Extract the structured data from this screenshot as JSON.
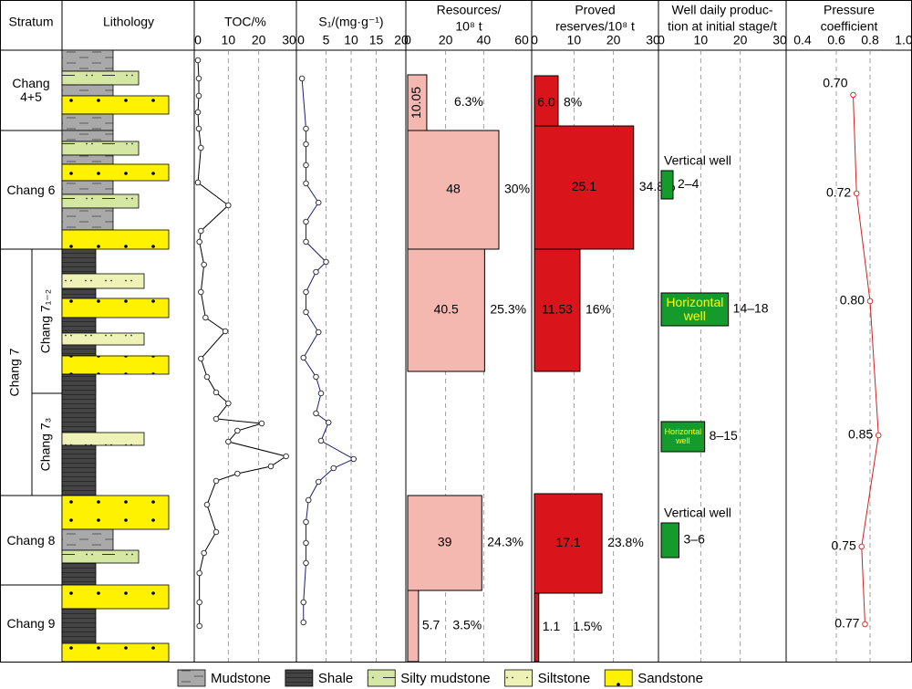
{
  "headers": {
    "stratum": "Stratum",
    "lithology": "Lithology"
  },
  "strata": [
    {
      "name": "Chang 4+5",
      "depth": [
        0,
        88
      ]
    },
    {
      "name": "Chang 6",
      "depth": [
        88,
        218
      ]
    },
    {
      "name": "Chang 7",
      "depth": [
        218,
        488
      ]
    },
    {
      "name": "Chang 8",
      "depth": [
        488,
        586
      ]
    },
    {
      "name": "Chang 9",
      "depth": [
        586,
        670
      ]
    }
  ],
  "substrata": [
    {
      "name": "Chang 7₁₋₂",
      "depth": [
        218,
        376
      ]
    },
    {
      "name": "Chang 7₃",
      "depth": [
        376,
        488
      ]
    }
  ],
  "lithology": [
    [
      0,
      0,
      23
    ],
    [
      2,
      23,
      38
    ],
    [
      0,
      38,
      50
    ],
    [
      4,
      50,
      70
    ],
    [
      0,
      70,
      88
    ],
    [
      0,
      88,
      100
    ],
    [
      2,
      100,
      115
    ],
    [
      0,
      115,
      125
    ],
    [
      4,
      125,
      143
    ],
    [
      0,
      143,
      158
    ],
    [
      2,
      158,
      173
    ],
    [
      0,
      173,
      197
    ],
    [
      4,
      197,
      218
    ],
    [
      1,
      218,
      245
    ],
    [
      3,
      245,
      261
    ],
    [
      1,
      261,
      272
    ],
    [
      4,
      272,
      293
    ],
    [
      1,
      293,
      310
    ],
    [
      3,
      310,
      323
    ],
    [
      1,
      323,
      335
    ],
    [
      4,
      335,
      355
    ],
    [
      1,
      355,
      419
    ],
    [
      3,
      419,
      433
    ],
    [
      1,
      433,
      488
    ],
    [
      4,
      488,
      525
    ],
    [
      0,
      525,
      548
    ],
    [
      2,
      548,
      562
    ],
    [
      1,
      562,
      586
    ],
    [
      4,
      586,
      612
    ],
    [
      1,
      612,
      650
    ],
    [
      4,
      650,
      670
    ]
  ],
  "legend": [
    "Mudstone",
    "Shale",
    "Silty mudstone",
    "Siltstone",
    "Sandstone"
  ],
  "chart_data": [
    {
      "type": "line",
      "title": [
        "TOC/%"
      ],
      "color": "#000000",
      "values": [
        0,
        0.3,
        0.3,
        0,
        0.3,
        1,
        0,
        10,
        1,
        0.5,
        2,
        1,
        2.5,
        9,
        1,
        3,
        6,
        10,
        6,
        21,
        13,
        10,
        29,
        24,
        13,
        6,
        3,
        6,
        2,
        0.5,
        0.5,
        0.5
      ],
      "depth": [
        11,
        31,
        50,
        68,
        86,
        107,
        145,
        170,
        198,
        210,
        235,
        265,
        293,
        308,
        338,
        358,
        375,
        387,
        404,
        409,
        417,
        429,
        445,
        456,
        464,
        472,
        498,
        528,
        551,
        573,
        605,
        631
      ],
      "xlim": [
        0,
        30
      ],
      "xticks": [
        0,
        10,
        20,
        30
      ],
      "grid": true
    },
    {
      "type": "line",
      "title": [
        "S₁/(mg·g⁻¹)"
      ],
      "color": "#1c1c7a",
      "values": [
        0.2,
        1,
        1,
        1,
        1,
        3.5,
        1,
        1,
        5,
        3,
        1,
        1,
        3.5,
        0.5,
        3,
        4,
        3,
        5.5,
        4,
        10.5,
        6.5,
        3.5,
        1.5,
        1,
        1,
        1,
        0.5,
        0.5
      ],
      "depth": [
        31,
        86,
        103,
        126,
        146,
        167,
        188,
        210,
        232,
        243,
        265,
        287,
        309,
        337,
        358,
        376,
        398,
        408,
        428,
        448,
        458,
        473,
        493,
        517,
        540,
        562,
        605,
        627
      ],
      "xlim": [
        0,
        20
      ],
      "xticks": [
        0,
        5,
        10,
        15,
        20
      ],
      "grid": true
    },
    {
      "type": "bar",
      "title": [
        "Resources/",
        "10⁸ t"
      ],
      "color": "#f4b8b0",
      "values": [
        10.05,
        48,
        40.5,
        39,
        5.7
      ],
      "depth_ranges": [
        [
          27,
          88
        ],
        [
          88,
          218
        ],
        [
          218,
          352
        ],
        [
          488,
          592
        ],
        [
          592,
          670
        ]
      ],
      "annotations": [
        "6.3%",
        "30%",
        "25.3%",
        "24.3%",
        "3.5%"
      ],
      "xlim": [
        0,
        60
      ],
      "xticks": [
        0,
        20,
        40,
        60
      ],
      "grid": true
    },
    {
      "type": "bar",
      "title": [
        "Proved",
        "reserves/10⁸ t"
      ],
      "color": "#d9141b",
      "values": [
        6,
        25.1,
        11.53,
        17.1,
        1.1
      ],
      "value_labels": [
        "6.0",
        "25.1",
        "11.53",
        "17.1",
        "1.1"
      ],
      "depth_ranges": [
        [
          28,
          88
        ],
        [
          83,
          218
        ],
        [
          218,
          352
        ],
        [
          486,
          595
        ],
        [
          595,
          670
        ]
      ],
      "annotations": [
        "8%",
        "34.8%",
        "16%",
        "23.8%",
        "1.5%"
      ],
      "xlim": [
        0,
        30
      ],
      "xticks": [
        0,
        10,
        20,
        30
      ],
      "grid": true
    },
    {
      "type": "bar",
      "title": [
        "Well daily produc-",
        "tion at initial stage/t"
      ],
      "color": "#159a2c",
      "values": [
        3,
        17,
        11,
        4.5
      ],
      "categories": [
        "Vertical well",
        "Horizontal well",
        "Horizontal well",
        "Vertical well"
      ],
      "annotations": [
        "2–4",
        "14–18",
        "8–15",
        "3–6"
      ],
      "depth_ranges": [
        [
          132,
          163
        ],
        [
          266,
          302
        ],
        [
          407,
          440
        ],
        [
          518,
          556
        ]
      ],
      "xlim": [
        0,
        30
      ],
      "xticks": [
        0,
        10,
        20,
        30
      ],
      "grid": true
    },
    {
      "type": "line",
      "title": [
        "Pressure",
        "coefficient"
      ],
      "color": "#d42020",
      "values": [
        0.7,
        0.72,
        0.8,
        0.85,
        0.75,
        0.77
      ],
      "value_labels": [
        "0.70",
        "0.72",
        "0.80",
        "0.85",
        "0.75",
        "0.77"
      ],
      "depth": [
        49,
        157,
        275,
        422,
        544,
        629
      ],
      "xlim": [
        0.4,
        1.0
      ],
      "xticks": [
        0.4,
        0.6,
        0.8,
        {
          "value": 1.0,
          "label": "1.0"
        }
      ],
      "grid": true
    }
  ]
}
